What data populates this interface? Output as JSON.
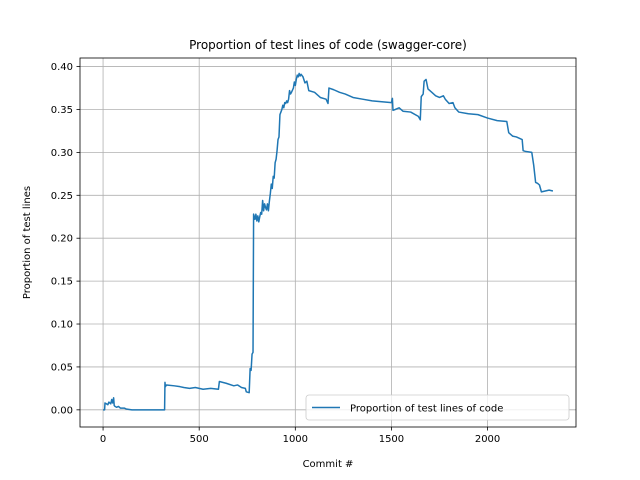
{
  "chart_data": {
    "type": "line",
    "title": "Proportion of test lines of code (swagger-core)",
    "xlabel": "Commit #",
    "ylabel": "Proportion of test lines",
    "xlim": [
      -120,
      2460
    ],
    "ylim": [
      -0.02,
      0.41
    ],
    "x_ticks": [
      0,
      500,
      1000,
      1500,
      2000
    ],
    "y_ticks": [
      0.0,
      0.05,
      0.1,
      0.15,
      0.2,
      0.25,
      0.3,
      0.35,
      0.4
    ],
    "x_tick_labels": [
      "0",
      "500",
      "1000",
      "1500",
      "2000"
    ],
    "y_tick_labels": [
      "0.00",
      "0.05",
      "0.10",
      "0.15",
      "0.20",
      "0.25",
      "0.30",
      "0.35",
      "0.40"
    ],
    "grid": true,
    "legend_position": "lower right",
    "series": [
      {
        "name": "Proportion of test lines of code",
        "color": "#1f77b4",
        "points": [
          [
            0,
            0.0
          ],
          [
            8,
            0.0
          ],
          [
            10,
            0.008
          ],
          [
            25,
            0.006
          ],
          [
            30,
            0.009
          ],
          [
            40,
            0.007
          ],
          [
            45,
            0.012
          ],
          [
            50,
            0.008
          ],
          [
            55,
            0.014
          ],
          [
            58,
            0.005
          ],
          [
            62,
            0.004
          ],
          [
            70,
            0.003
          ],
          [
            80,
            0.004
          ],
          [
            90,
            0.002
          ],
          [
            110,
            0.002
          ],
          [
            120,
            0.001
          ],
          [
            150,
            0.0
          ],
          [
            320,
            0.0
          ],
          [
            322,
            0.032
          ],
          [
            324,
            0.027
          ],
          [
            330,
            0.029
          ],
          [
            370,
            0.028
          ],
          [
            400,
            0.027
          ],
          [
            420,
            0.026
          ],
          [
            450,
            0.025
          ],
          [
            480,
            0.026
          ],
          [
            500,
            0.025
          ],
          [
            520,
            0.024
          ],
          [
            560,
            0.025
          ],
          [
            600,
            0.024
          ],
          [
            605,
            0.033
          ],
          [
            640,
            0.031
          ],
          [
            680,
            0.028
          ],
          [
            700,
            0.029
          ],
          [
            720,
            0.026
          ],
          [
            740,
            0.025
          ],
          [
            745,
            0.021
          ],
          [
            760,
            0.02
          ],
          [
            765,
            0.048
          ],
          [
            770,
            0.046
          ],
          [
            775,
            0.065
          ],
          [
            780,
            0.067
          ],
          [
            783,
            0.228
          ],
          [
            790,
            0.222
          ],
          [
            795,
            0.228
          ],
          [
            800,
            0.22
          ],
          [
            805,
            0.226
          ],
          [
            810,
            0.219
          ],
          [
            815,
            0.225
          ],
          [
            820,
            0.23
          ],
          [
            825,
            0.228
          ],
          [
            830,
            0.244
          ],
          [
            835,
            0.232
          ],
          [
            840,
            0.24
          ],
          [
            845,
            0.236
          ],
          [
            850,
            0.233
          ],
          [
            855,
            0.24
          ],
          [
            860,
            0.232
          ],
          [
            865,
            0.243
          ],
          [
            870,
            0.252
          ],
          [
            875,
            0.263
          ],
          [
            880,
            0.258
          ],
          [
            885,
            0.272
          ],
          [
            890,
            0.27
          ],
          [
            895,
            0.288
          ],
          [
            900,
            0.292
          ],
          [
            905,
            0.302
          ],
          [
            910,
            0.315
          ],
          [
            915,
            0.318
          ],
          [
            920,
            0.344
          ],
          [
            925,
            0.347
          ],
          [
            930,
            0.35
          ],
          [
            935,
            0.355
          ],
          [
            940,
            0.352
          ],
          [
            945,
            0.358
          ],
          [
            950,
            0.357
          ],
          [
            955,
            0.36
          ],
          [
            960,
            0.358
          ],
          [
            965,
            0.362
          ],
          [
            970,
            0.372
          ],
          [
            975,
            0.368
          ],
          [
            980,
            0.37
          ],
          [
            990,
            0.375
          ],
          [
            995,
            0.382
          ],
          [
            1000,
            0.378
          ],
          [
            1005,
            0.385
          ],
          [
            1010,
            0.39
          ],
          [
            1015,
            0.388
          ],
          [
            1020,
            0.392
          ],
          [
            1025,
            0.389
          ],
          [
            1030,
            0.391
          ],
          [
            1040,
            0.388
          ],
          [
            1050,
            0.381
          ],
          [
            1060,
            0.383
          ],
          [
            1070,
            0.372
          ],
          [
            1100,
            0.37
          ],
          [
            1130,
            0.364
          ],
          [
            1160,
            0.362
          ],
          [
            1170,
            0.357
          ],
          [
            1175,
            0.375
          ],
          [
            1200,
            0.373
          ],
          [
            1230,
            0.37
          ],
          [
            1260,
            0.368
          ],
          [
            1300,
            0.364
          ],
          [
            1350,
            0.362
          ],
          [
            1400,
            0.36
          ],
          [
            1450,
            0.359
          ],
          [
            1500,
            0.358
          ],
          [
            1505,
            0.363
          ],
          [
            1508,
            0.349
          ],
          [
            1520,
            0.35
          ],
          [
            1540,
            0.352
          ],
          [
            1560,
            0.348
          ],
          [
            1600,
            0.347
          ],
          [
            1640,
            0.342
          ],
          [
            1650,
            0.338
          ],
          [
            1655,
            0.365
          ],
          [
            1665,
            0.368
          ],
          [
            1670,
            0.383
          ],
          [
            1680,
            0.385
          ],
          [
            1690,
            0.374
          ],
          [
            1710,
            0.37
          ],
          [
            1730,
            0.366
          ],
          [
            1750,
            0.364
          ],
          [
            1770,
            0.366
          ],
          [
            1780,
            0.362
          ],
          [
            1800,
            0.357
          ],
          [
            1820,
            0.358
          ],
          [
            1830,
            0.352
          ],
          [
            1850,
            0.347
          ],
          [
            1900,
            0.345
          ],
          [
            1950,
            0.344
          ],
          [
            2000,
            0.34
          ],
          [
            2050,
            0.337
          ],
          [
            2100,
            0.336
          ],
          [
            2110,
            0.323
          ],
          [
            2130,
            0.319
          ],
          [
            2150,
            0.318
          ],
          [
            2170,
            0.316
          ],
          [
            2180,
            0.315
          ],
          [
            2185,
            0.302
          ],
          [
            2200,
            0.301
          ],
          [
            2230,
            0.3
          ],
          [
            2240,
            0.285
          ],
          [
            2250,
            0.265
          ],
          [
            2260,
            0.264
          ],
          [
            2270,
            0.262
          ],
          [
            2280,
            0.254
          ],
          [
            2300,
            0.255
          ],
          [
            2320,
            0.256
          ],
          [
            2340,
            0.255
          ]
        ]
      }
    ]
  }
}
